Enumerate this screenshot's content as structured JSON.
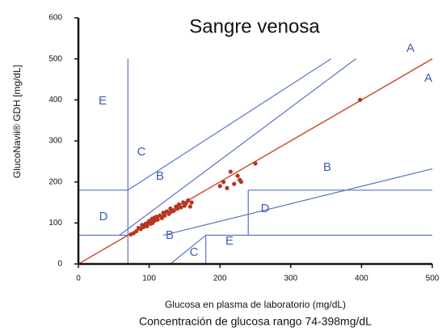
{
  "chart_data": {
    "type": "scatter",
    "title": "Sangre venosa",
    "subtitle": "Concentración de glucosa rango 74-398mg/dL",
    "xlabel": "Glucosa en plasma de laboratorio (mg/dL)",
    "ylabel": "GlucoNavii® GDH [mg/dL]",
    "xlim": [
      0,
      500
    ],
    "xticks": [
      0,
      100,
      200,
      300,
      400,
      500
    ],
    "ylim": [
      0,
      600
    ],
    "yticks": [
      0,
      100,
      200,
      300,
      400,
      500,
      600
    ],
    "grid": false,
    "color": "#b5361f",
    "x": [
      74,
      78,
      82,
      85,
      88,
      90,
      92,
      95,
      97,
      98,
      100,
      102,
      104,
      105,
      107,
      108,
      110,
      112,
      115,
      118,
      120,
      122,
      125,
      128,
      130,
      132,
      135,
      138,
      140,
      142,
      145,
      148,
      150,
      152,
      155,
      158,
      160,
      200,
      205,
      210,
      215,
      220,
      225,
      228,
      230,
      250,
      398
    ],
    "y": [
      72,
      75,
      80,
      88,
      85,
      95,
      90,
      98,
      92,
      100,
      105,
      98,
      110,
      100,
      112,
      106,
      115,
      108,
      118,
      112,
      125,
      118,
      128,
      122,
      135,
      128,
      130,
      140,
      135,
      145,
      138,
      150,
      142,
      148,
      155,
      140,
      150,
      190,
      200,
      185,
      225,
      195,
      215,
      205,
      200,
      245,
      400
    ],
    "identity_line": {
      "color": "#c9502f",
      "x": [
        0,
        500
      ],
      "y": [
        0,
        500
      ]
    },
    "zone_color": "#5a74c0",
    "zone_lines": [
      {
        "x": [
          70,
          70
        ],
        "y": [
          0,
          500
        ]
      },
      {
        "x": [
          0,
          70
        ],
        "y": [
          180,
          180
        ]
      },
      {
        "x": [
          0,
          70
        ],
        "y": [
          70,
          70
        ]
      },
      {
        "x": [
          70,
          357
        ],
        "y": [
          180,
          500
        ]
      },
      {
        "x": [
          58,
          392
        ],
        "y": [
          70,
          500
        ]
      },
      {
        "x": [
          120,
          500
        ],
        "y": [
          70,
          232
        ]
      },
      {
        "x": [
          240,
          500
        ],
        "y": [
          180,
          180
        ]
      },
      {
        "x": [
          240,
          240
        ],
        "y": [
          70,
          180
        ]
      },
      {
        "x": [
          180,
          500
        ],
        "y": [
          70,
          70
        ]
      },
      {
        "x": [
          180,
          180
        ],
        "y": [
          0,
          70
        ]
      },
      {
        "x": [
          130,
          180
        ],
        "y": [
          0,
          70
        ]
      }
    ],
    "annotations": [
      "A",
      "A",
      "B",
      "B",
      "B",
      "C",
      "C",
      "D",
      "D",
      "E",
      "E"
    ]
  }
}
